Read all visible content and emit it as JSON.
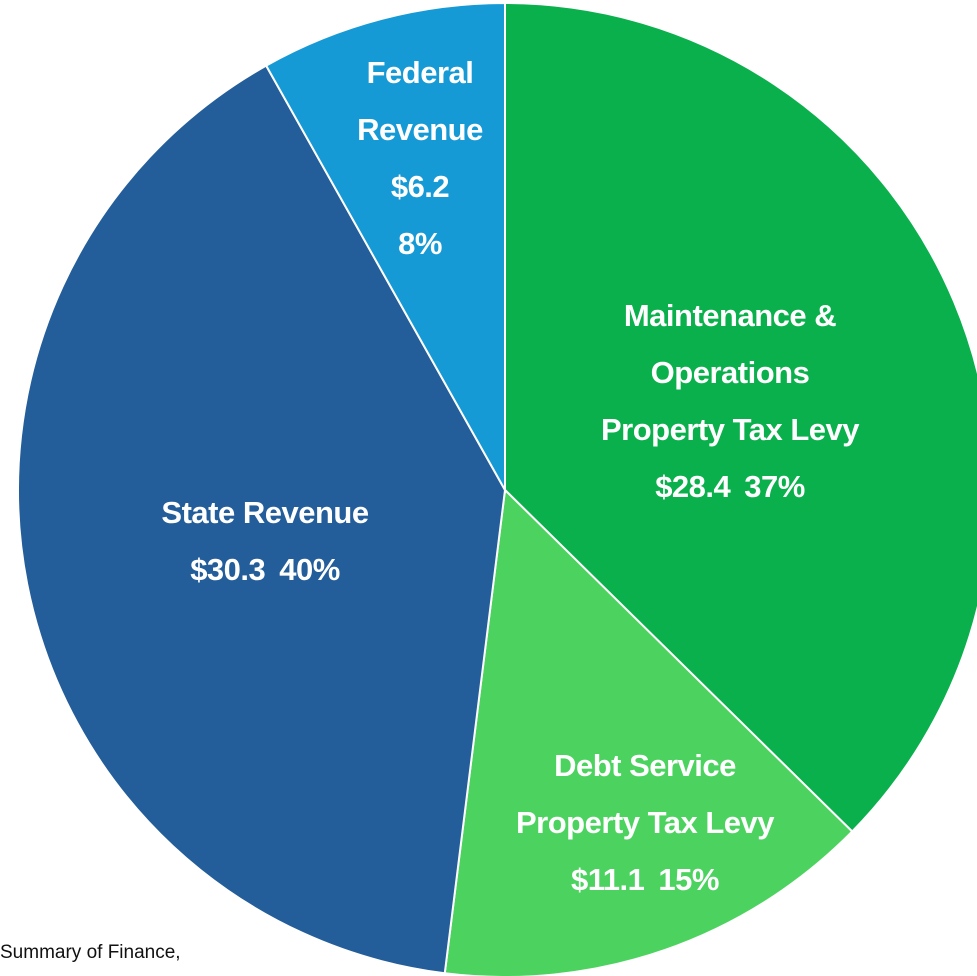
{
  "chart_data": {
    "type": "pie",
    "categories": [
      "Maintenance & Operations Property Tax Levy",
      "Debt Service Property Tax Levy",
      "State Revenue",
      "Federal Revenue"
    ],
    "values": [
      28.4,
      11.1,
      30.3,
      6.2
    ],
    "value_labels": [
      "$28.4",
      "$11.1",
      "$30.3",
      "$6.2"
    ],
    "percents": [
      37,
      15,
      40,
      8
    ],
    "percent_labels": [
      "37%",
      "15%",
      "40%",
      "8%"
    ],
    "colors": [
      "#0ab04c",
      "#4cd35f",
      "#235d9a",
      "#169ad6"
    ],
    "footnote": "Summary of Finance,"
  }
}
